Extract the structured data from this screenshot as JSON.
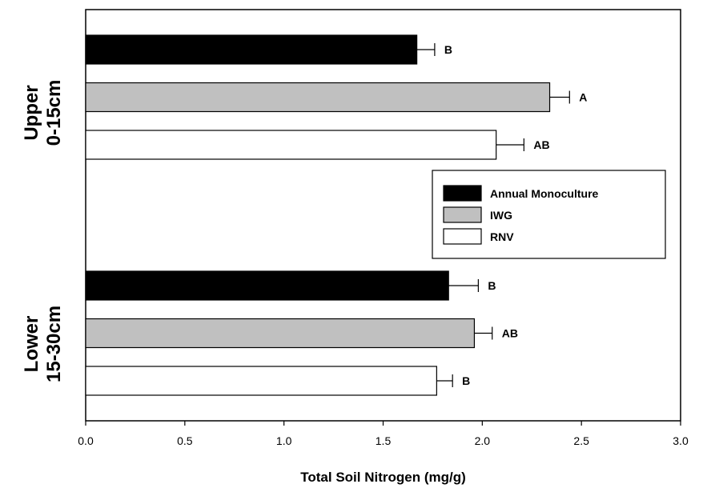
{
  "chart_data": {
    "type": "bar",
    "orientation": "horizontal",
    "xlabel": "Total Soil Nitrogen (mg/g)",
    "xlim": [
      0.0,
      3.0
    ],
    "xticks": [
      "0.0",
      "0.5",
      "1.0",
      "1.5",
      "2.0",
      "2.5",
      "3.0"
    ],
    "groups": [
      {
        "label_line1": "Upper",
        "label_line2": "0-15cm"
      },
      {
        "label_line1": "Lower",
        "label_line2": "15-30cm"
      }
    ],
    "series": [
      {
        "name": "Annual Monoculture",
        "color": "#000000",
        "values": [
          1.67,
          1.83
        ],
        "errors": [
          0.09,
          0.15
        ],
        "letters": [
          "B",
          "B"
        ]
      },
      {
        "name": "IWG",
        "color": "#c0c0c0",
        "values": [
          2.34,
          1.96
        ],
        "errors": [
          0.1,
          0.09
        ],
        "letters": [
          "A",
          "AB"
        ]
      },
      {
        "name": "RNV",
        "color": "#ffffff",
        "values": [
          2.07,
          1.77
        ],
        "errors": [
          0.14,
          0.08
        ],
        "letters": [
          "AB",
          "B"
        ]
      }
    ],
    "legend_position": "right-middle",
    "grid": false
  }
}
